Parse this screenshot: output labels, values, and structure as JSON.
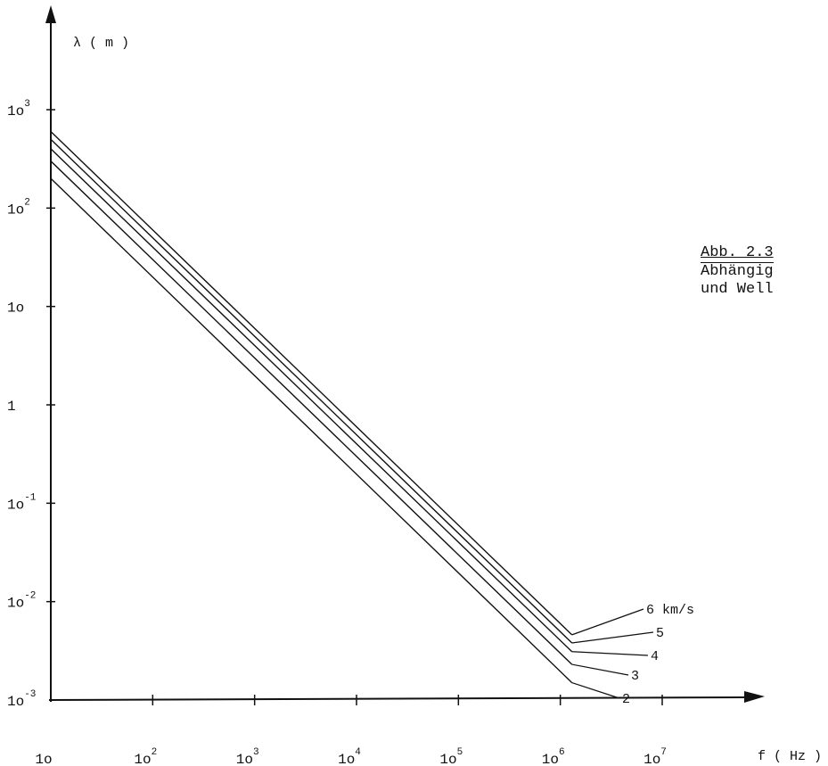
{
  "chart_data": {
    "type": "line",
    "xscale": "log",
    "yscale": "log",
    "xlim": [
      10,
      10000000
    ],
    "ylim": [
      0.001,
      1000
    ],
    "xlabel": "f ( Hz )",
    "ylabel": "λ ( m )",
    "x_ticks": [
      {
        "value": 10,
        "base": "1o",
        "exp": ""
      },
      {
        "value": 100,
        "base": "1o",
        "exp": "2"
      },
      {
        "value": 1000,
        "base": "1o",
        "exp": "3"
      },
      {
        "value": 10000,
        "base": "1o",
        "exp": "4"
      },
      {
        "value": 100000,
        "base": "1o",
        "exp": "5"
      },
      {
        "value": 1000000,
        "base": "1o",
        "exp": "6"
      },
      {
        "value": 10000000,
        "base": "1o",
        "exp": "7"
      }
    ],
    "y_ticks": [
      {
        "value": 0.001,
        "base": "1o",
        "exp": "-3"
      },
      {
        "value": 0.01,
        "base": "1o",
        "exp": "-2"
      },
      {
        "value": 0.1,
        "base": "1o",
        "exp": "-1"
      },
      {
        "value": 1,
        "base": "1",
        "exp": ""
      },
      {
        "value": 10,
        "base": "1o",
        "exp": ""
      },
      {
        "value": 100,
        "base": "1o",
        "exp": "2"
      },
      {
        "value": 1000,
        "base": "1o",
        "exp": "3"
      }
    ],
    "series": [
      {
        "name": "2",
        "velocity_km_s": 2,
        "x": [
          10,
          1300000
        ],
        "y": [
          200,
          0.0015
        ]
      },
      {
        "name": "3",
        "velocity_km_s": 3,
        "x": [
          10,
          1300000
        ],
        "y": [
          300,
          0.0023
        ]
      },
      {
        "name": "4",
        "velocity_km_s": 4,
        "x": [
          10,
          1300000
        ],
        "y": [
          400,
          0.0031
        ]
      },
      {
        "name": "5",
        "velocity_km_s": 5,
        "x": [
          10,
          1300000
        ],
        "y": [
          500,
          0.0038
        ]
      },
      {
        "name": "6 km/s",
        "velocity_km_s": 6,
        "x": [
          10,
          1300000
        ],
        "y": [
          600,
          0.0046
        ]
      }
    ]
  },
  "caption": {
    "title": "Abb. 2.3",
    "line1": "Abhängig",
    "line2": "und Well"
  }
}
